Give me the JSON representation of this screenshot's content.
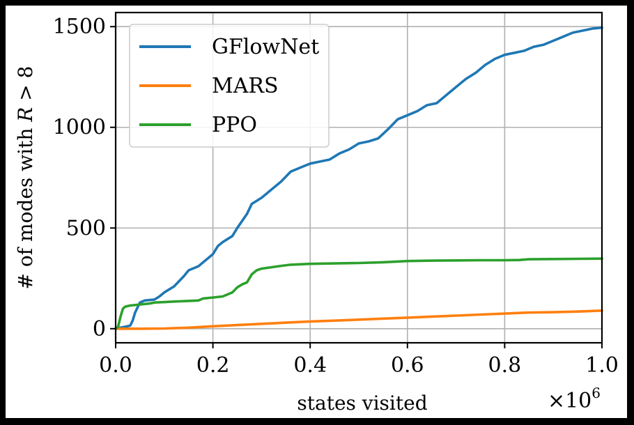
{
  "chart_data": {
    "type": "line",
    "title": "",
    "xlabel": "states visited",
    "ylabel": "# of modes with R > 8",
    "ylabel_parts": {
      "prefix": "# of modes with ",
      "var": "R",
      "op": " > ",
      "num": "8"
    },
    "x_multiplier_label": "×10",
    "x_multiplier_exponent": "6",
    "xlim": [
      0,
      1.0
    ],
    "ylim": [
      -70,
      1570
    ],
    "xticks": [
      0.0,
      0.2,
      0.4,
      0.6,
      0.8,
      1.0
    ],
    "xtick_labels": [
      "0.0",
      "0.2",
      "0.4",
      "0.6",
      "0.8",
      "1.0"
    ],
    "yticks": [
      0,
      500,
      1000,
      1500
    ],
    "ytick_labels": [
      "0",
      "500",
      "1000",
      "1500"
    ],
    "grid": true,
    "legend_position": "upper-left",
    "series": [
      {
        "name": "GFlowNet",
        "color": "#1f77b4",
        "points": [
          [
            0.0,
            0
          ],
          [
            0.01,
            5
          ],
          [
            0.02,
            10
          ],
          [
            0.03,
            15
          ],
          [
            0.035,
            40
          ],
          [
            0.04,
            80
          ],
          [
            0.05,
            130
          ],
          [
            0.06,
            140
          ],
          [
            0.08,
            145
          ],
          [
            0.09,
            160
          ],
          [
            0.1,
            180
          ],
          [
            0.12,
            210
          ],
          [
            0.14,
            260
          ],
          [
            0.15,
            290
          ],
          [
            0.17,
            310
          ],
          [
            0.19,
            350
          ],
          [
            0.2,
            370
          ],
          [
            0.21,
            410
          ],
          [
            0.22,
            430
          ],
          [
            0.24,
            460
          ],
          [
            0.25,
            500
          ],
          [
            0.27,
            570
          ],
          [
            0.28,
            620
          ],
          [
            0.3,
            650
          ],
          [
            0.32,
            690
          ],
          [
            0.34,
            730
          ],
          [
            0.36,
            780
          ],
          [
            0.38,
            800
          ],
          [
            0.4,
            820
          ],
          [
            0.42,
            830
          ],
          [
            0.44,
            840
          ],
          [
            0.46,
            870
          ],
          [
            0.48,
            890
          ],
          [
            0.5,
            920
          ],
          [
            0.52,
            930
          ],
          [
            0.54,
            945
          ],
          [
            0.56,
            990
          ],
          [
            0.58,
            1040
          ],
          [
            0.6,
            1060
          ],
          [
            0.62,
            1080
          ],
          [
            0.64,
            1110
          ],
          [
            0.66,
            1120
          ],
          [
            0.68,
            1160
          ],
          [
            0.7,
            1200
          ],
          [
            0.72,
            1240
          ],
          [
            0.74,
            1270
          ],
          [
            0.76,
            1310
          ],
          [
            0.78,
            1340
          ],
          [
            0.8,
            1360
          ],
          [
            0.82,
            1370
          ],
          [
            0.84,
            1380
          ],
          [
            0.86,
            1400
          ],
          [
            0.88,
            1410
          ],
          [
            0.9,
            1430
          ],
          [
            0.92,
            1450
          ],
          [
            0.94,
            1470
          ],
          [
            0.96,
            1480
          ],
          [
            0.98,
            1490
          ],
          [
            1.0,
            1495
          ]
        ]
      },
      {
        "name": "MARS",
        "color": "#ff7f0e",
        "points": [
          [
            0.0,
            0
          ],
          [
            0.05,
            0
          ],
          [
            0.1,
            1
          ],
          [
            0.15,
            5
          ],
          [
            0.2,
            12
          ],
          [
            0.25,
            18
          ],
          [
            0.3,
            24
          ],
          [
            0.35,
            30
          ],
          [
            0.4,
            36
          ],
          [
            0.45,
            40
          ],
          [
            0.5,
            45
          ],
          [
            0.55,
            50
          ],
          [
            0.6,
            55
          ],
          [
            0.65,
            60
          ],
          [
            0.7,
            65
          ],
          [
            0.75,
            70
          ],
          [
            0.8,
            75
          ],
          [
            0.85,
            80
          ],
          [
            0.9,
            82
          ],
          [
            0.95,
            85
          ],
          [
            1.0,
            90
          ]
        ]
      },
      {
        "name": "PPO",
        "color": "#2ca02c",
        "points": [
          [
            0.0,
            0
          ],
          [
            0.005,
            10
          ],
          [
            0.01,
            60
          ],
          [
            0.015,
            100
          ],
          [
            0.02,
            110
          ],
          [
            0.03,
            115
          ],
          [
            0.05,
            120
          ],
          [
            0.07,
            125
          ],
          [
            0.08,
            130
          ],
          [
            0.1,
            132
          ],
          [
            0.12,
            135
          ],
          [
            0.15,
            138
          ],
          [
            0.17,
            140
          ],
          [
            0.18,
            150
          ],
          [
            0.2,
            155
          ],
          [
            0.22,
            160
          ],
          [
            0.24,
            180
          ],
          [
            0.25,
            205
          ],
          [
            0.26,
            220
          ],
          [
            0.27,
            230
          ],
          [
            0.28,
            270
          ],
          [
            0.29,
            290
          ],
          [
            0.3,
            298
          ],
          [
            0.32,
            305
          ],
          [
            0.34,
            312
          ],
          [
            0.36,
            318
          ],
          [
            0.38,
            320
          ],
          [
            0.4,
            322
          ],
          [
            0.45,
            324
          ],
          [
            0.5,
            326
          ],
          [
            0.55,
            330
          ],
          [
            0.6,
            336
          ],
          [
            0.65,
            338
          ],
          [
            0.7,
            339
          ],
          [
            0.75,
            340
          ],
          [
            0.8,
            340
          ],
          [
            0.83,
            341
          ],
          [
            0.85,
            345
          ],
          [
            0.9,
            346
          ],
          [
            0.95,
            347
          ],
          [
            1.0,
            348
          ]
        ]
      }
    ]
  }
}
